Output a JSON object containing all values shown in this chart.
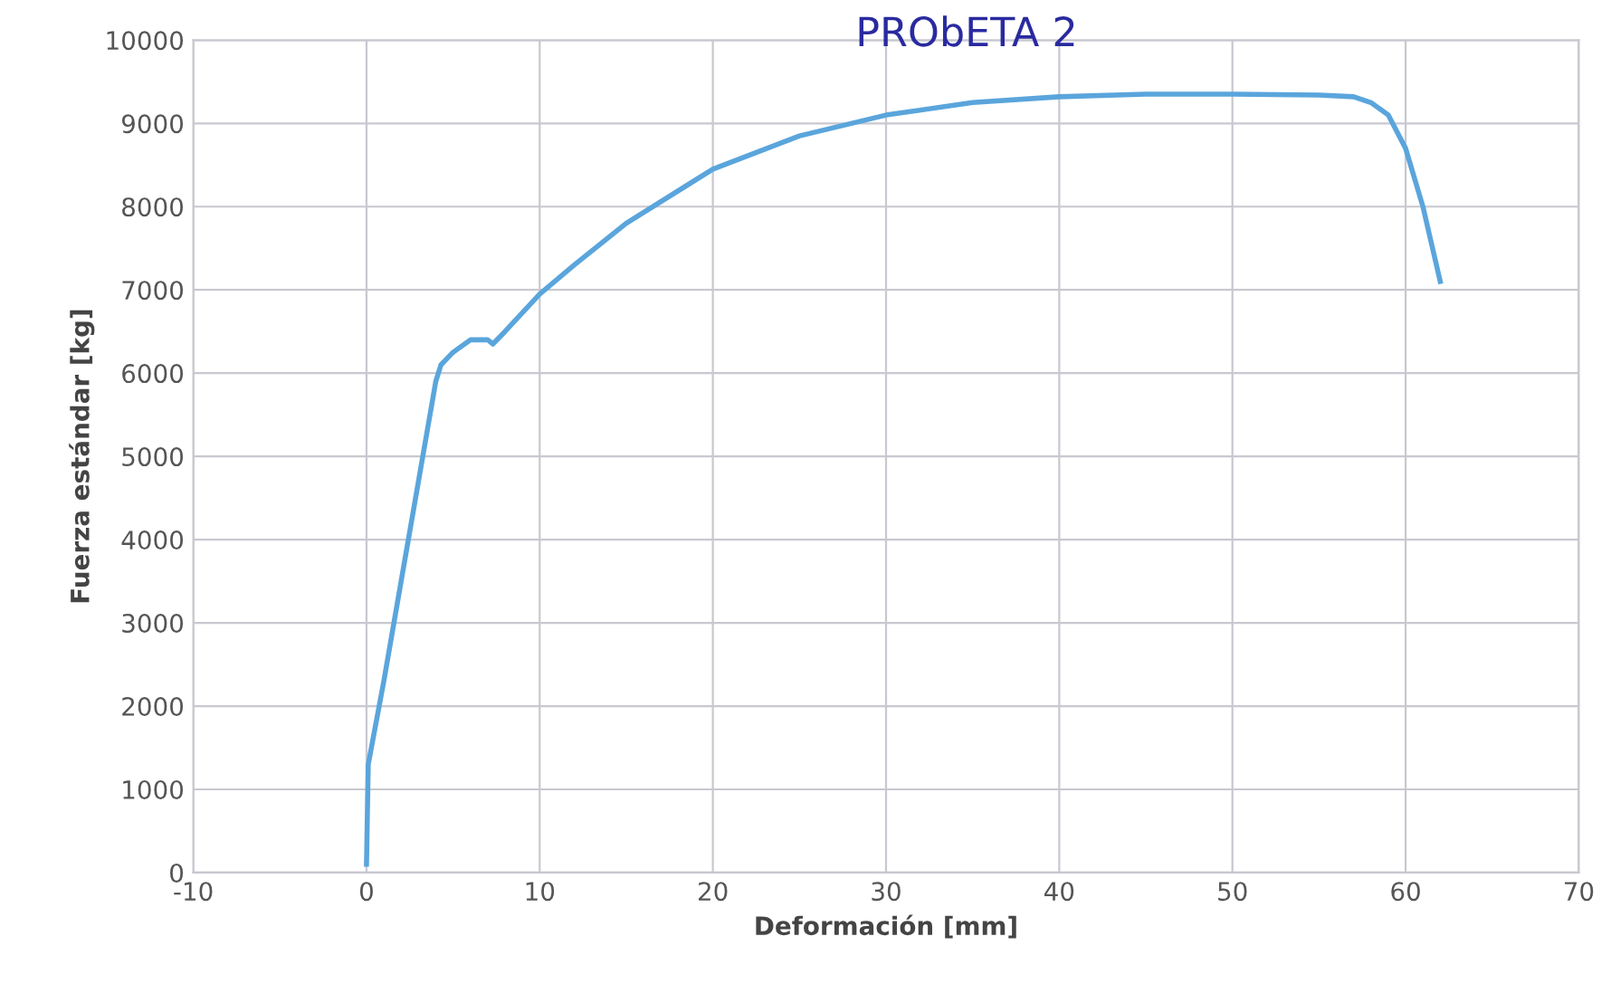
{
  "chart_data": {
    "type": "line",
    "title": "PRObETA 2",
    "xlabel": "Deformación [mm]",
    "ylabel": "Fuerza estándar [kg]",
    "xlim": [
      -10,
      70
    ],
    "xticks": [
      -10,
      0,
      10,
      20,
      30,
      40,
      50,
      60,
      70
    ],
    "ylim": [
      0,
      10000
    ],
    "yticks": [
      0,
      1000,
      2000,
      3000,
      4000,
      5000,
      6000,
      7000,
      8000,
      9000,
      10000
    ],
    "grid": true,
    "marker": "none",
    "line_style": "solid",
    "series": [
      {
        "color": "#5aa5dc",
        "x": [
          0,
          0.1,
          1,
          2,
          3,
          4,
          4.3,
          5,
          6,
          7,
          7.3,
          8,
          10,
          12,
          15,
          20,
          25,
          30,
          35,
          40,
          45,
          50,
          55,
          57,
          58,
          59,
          60,
          61,
          62
        ],
        "values": [
          100,
          1300,
          2300,
          3500,
          4700,
          5900,
          6100,
          6250,
          6400,
          6400,
          6350,
          6500,
          6950,
          7300,
          7800,
          8450,
          8850,
          9100,
          9250,
          9320,
          9350,
          9350,
          9340,
          9320,
          9250,
          9100,
          8700,
          8000,
          7100
        ]
      }
    ]
  }
}
